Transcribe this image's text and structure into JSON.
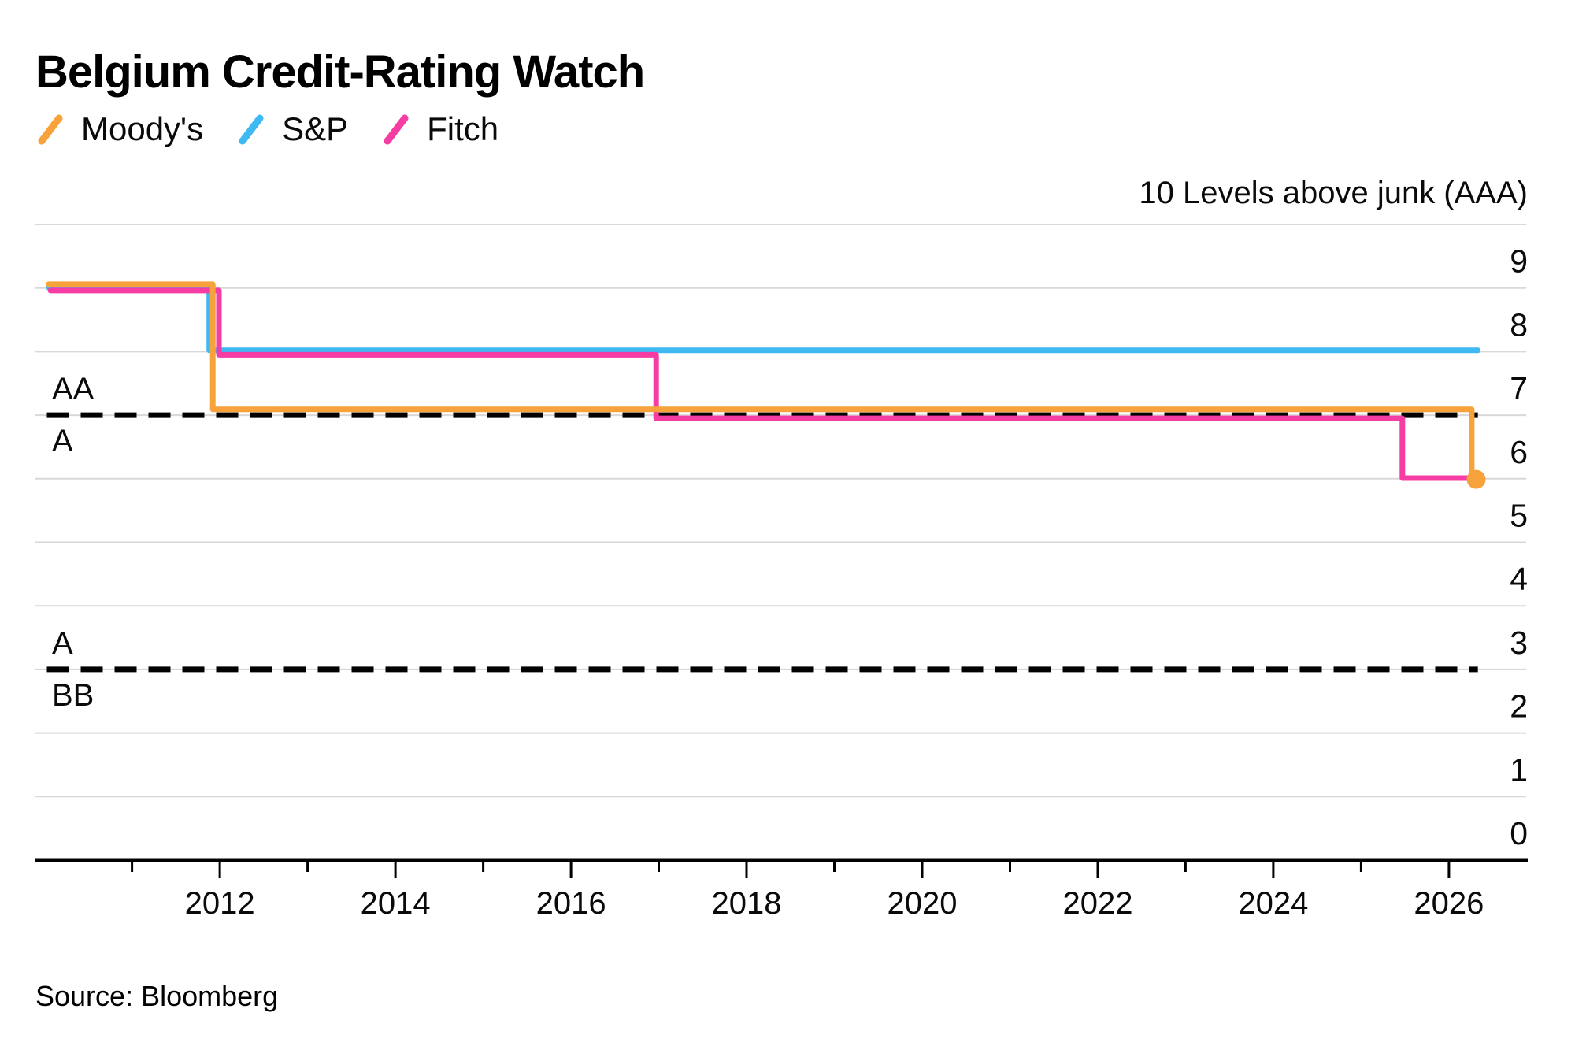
{
  "title": "Belgium Credit-Rating Watch",
  "source": "Source: Bloomberg",
  "chart_data": {
    "type": "line",
    "title": "Belgium Credit-Rating Watch",
    "subtitle": "",
    "right_axis_header": "10 Levels above junk (AAA)",
    "legend_position": "top-left",
    "grid": true,
    "x_axis": {
      "min": 2009.9,
      "max": 2026.88,
      "major_tick_years": [
        2012,
        2014,
        2016,
        2018,
        2020,
        2022,
        2024,
        2026
      ],
      "minor_tick_years": [
        2011,
        2013,
        2015,
        2017,
        2019,
        2021,
        2023,
        2025
      ]
    },
    "y_axis": {
      "min": 0,
      "max": 10,
      "tick_labels": [
        "9",
        "8",
        "7",
        "6",
        "5",
        "4",
        "3",
        "2",
        "1",
        "0"
      ]
    },
    "thresholds": [
      {
        "level": 7,
        "label_above": "AA",
        "label_below": "A",
        "from": 2010.03,
        "to": 2026.33
      },
      {
        "level": 3,
        "label_above": "A",
        "label_below": "BB",
        "from": 2010.03,
        "to": 2026.33
      }
    ],
    "series": [
      {
        "id": "moodys",
        "name": "Moody's",
        "color": "#F7A23B",
        "end_marker": true,
        "ratings_steps": [
          {
            "year": 2010.05,
            "level": 9
          },
          {
            "year": 2011.92,
            "level": 7
          },
          {
            "year": 2026.26,
            "level": 6
          }
        ],
        "end_year": 2026.31,
        "draw_points": [
          [
            2010.05,
            9.06
          ],
          [
            2011.92,
            9.06
          ],
          [
            2011.92,
            7.09
          ],
          [
            2026.26,
            7.09
          ],
          [
            2026.26,
            5.99
          ],
          [
            2026.31,
            5.99
          ]
        ]
      },
      {
        "id": "sp",
        "name": "S&P",
        "color": "#3FB9F2",
        "end_marker": false,
        "ratings_steps": [
          {
            "year": 2010.05,
            "level": 9
          },
          {
            "year": 2011.88,
            "level": 8
          }
        ],
        "end_year": 2026.33,
        "draw_points": [
          [
            2010.05,
            9.01
          ],
          [
            2011.88,
            9.01
          ],
          [
            2011.88,
            8.02
          ],
          [
            2026.33,
            8.02
          ]
        ]
      },
      {
        "id": "fitch",
        "name": "Fitch",
        "color": "#F53DA4",
        "end_marker": false,
        "ratings_steps": [
          {
            "year": 2010.07,
            "level": 9
          },
          {
            "year": 2011.99,
            "level": 8
          },
          {
            "year": 2016.97,
            "level": 7
          },
          {
            "year": 2025.47,
            "level": 6
          }
        ],
        "end_year": 2026.31,
        "draw_points": [
          [
            2010.07,
            8.96
          ],
          [
            2011.99,
            8.96
          ],
          [
            2011.99,
            7.95
          ],
          [
            2016.97,
            7.95
          ],
          [
            2016.97,
            6.95
          ],
          [
            2025.47,
            6.95
          ],
          [
            2025.47,
            6.01
          ],
          [
            2026.31,
            6.01
          ]
        ]
      }
    ],
    "style": {
      "grid_color": "#D8D8D8",
      "axis_color": "#000000",
      "threshold_color": "#000000",
      "text_color": "#0A0A0A",
      "background": "#FFFFFF",
      "line_width": 7,
      "marker_radius": 12
    }
  }
}
